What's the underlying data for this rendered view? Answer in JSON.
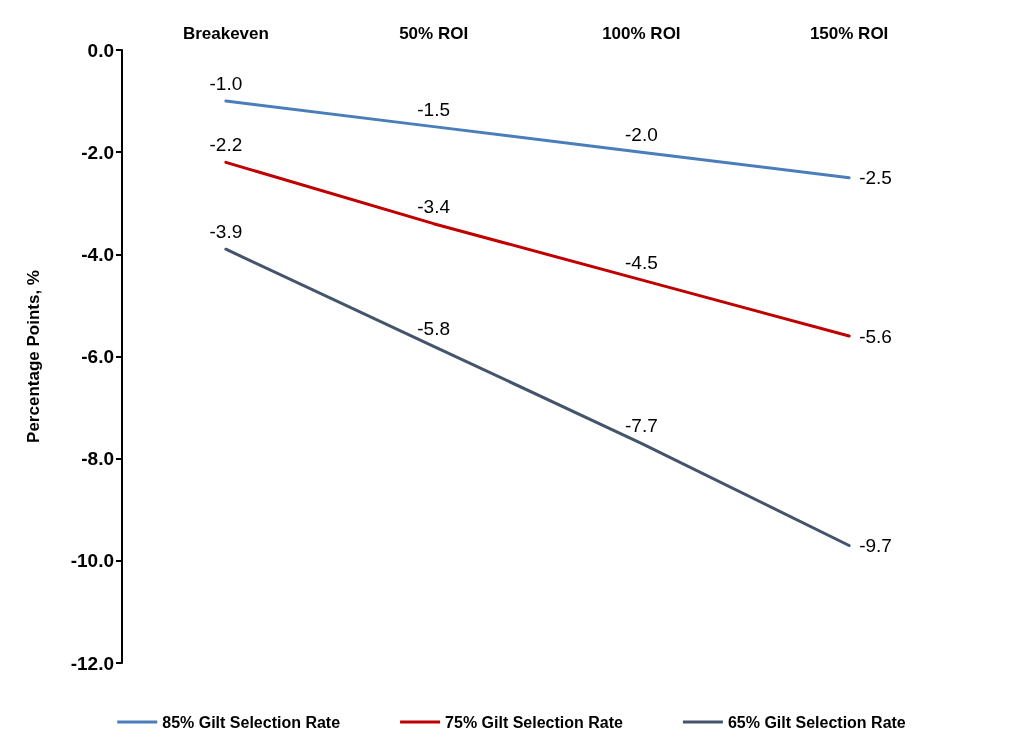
{
  "chart_data": {
    "type": "line",
    "categories": [
      "Breakeven",
      "50% ROI",
      "100% ROI",
      "150% ROI"
    ],
    "ylabel": "Percentage Points, %",
    "ylim": [
      -12,
      0
    ],
    "yticks": [
      {
        "value": -12,
        "label": "-12.0"
      },
      {
        "value": -10,
        "label": "-10.0"
      },
      {
        "value": -8,
        "label": "-8.0"
      },
      {
        "value": -6,
        "label": "-6.0"
      },
      {
        "value": -4,
        "label": "-4.0"
      },
      {
        "value": -2,
        "label": "-2.0"
      },
      {
        "value": 0,
        "label": "0.0"
      }
    ],
    "series": [
      {
        "name": "85% Gilt Selection Rate",
        "color": "#4a7ebb",
        "values": [
          -1.0,
          -1.5,
          -2.0,
          -2.5
        ],
        "value_labels": [
          "-1.0",
          "-1.5",
          "-2.0",
          "-2.5"
        ]
      },
      {
        "name": "75% Gilt Selection Rate",
        "color": "#c00000",
        "values": [
          -2.2,
          -3.4,
          -4.5,
          -5.6
        ],
        "value_labels": [
          "-2.2",
          "-3.4",
          "-4.5",
          "-5.6"
        ]
      },
      {
        "name": "65% Gilt Selection Rate",
        "color": "#44546a",
        "values": [
          -3.9,
          -5.8,
          -7.7,
          -9.7
        ],
        "value_labels": [
          "-3.9",
          "-5.8",
          "-7.7",
          "-9.7"
        ]
      }
    ],
    "legend": "bottom",
    "grid": false,
    "marker": "none",
    "line_style": "solid"
  }
}
